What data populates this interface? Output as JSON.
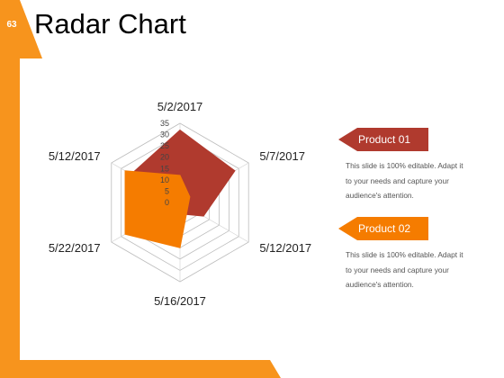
{
  "slide": {
    "page_number": "63",
    "title": "Radar Chart",
    "accent_color": "#f7941d"
  },
  "chart_data": {
    "type": "radar",
    "categories": [
      "5/2/2017",
      "5/7/2017",
      "5/12/2017",
      "5/16/2017",
      "5/22/2017",
      "5/12/2017"
    ],
    "radial_ticks": [
      "35",
      "30",
      "25",
      "20",
      "15",
      "10",
      "5",
      "0"
    ],
    "rlim": [
      0,
      35
    ],
    "grid": true,
    "legend": "right",
    "series": [
      {
        "name": "Product 01",
        "color": "#b03a2e",
        "values": [
          32,
          28,
          12,
          5,
          15,
          25
        ]
      },
      {
        "name": "Product 02",
        "color": "#f57c00",
        "values": [
          12,
          5,
          4,
          20,
          28,
          28
        ]
      }
    ]
  },
  "legend": {
    "items": [
      {
        "label": "Product 01",
        "color": "#b03a2e",
        "description": "This slide is 100% editable. Adapt it to your needs and capture your audience's attention."
      },
      {
        "label": "Product 02",
        "color": "#f57c00",
        "description": "This slide is 100% editable. Adapt it to your needs and capture your audience's attention."
      }
    ]
  }
}
